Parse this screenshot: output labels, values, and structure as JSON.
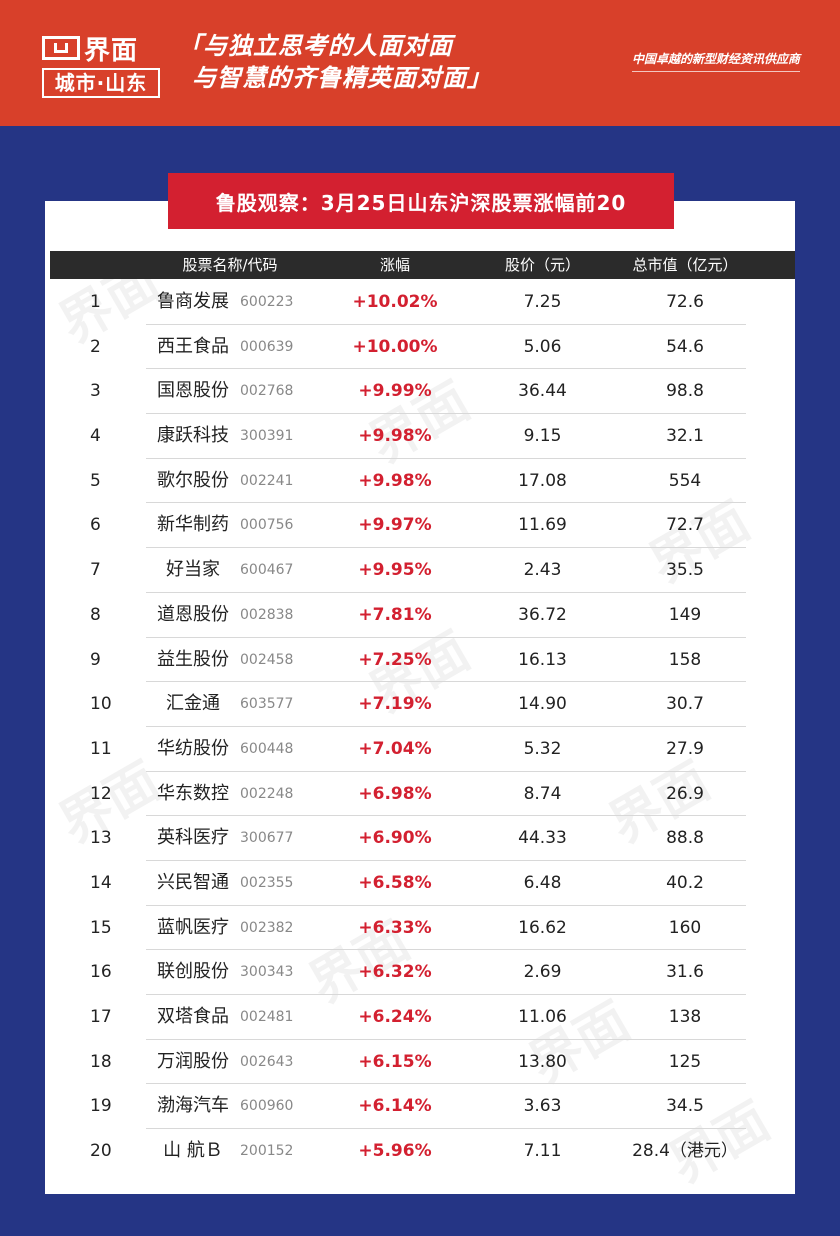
{
  "header": {
    "logo_name": "界面",
    "logo_city": "城市·山东",
    "slogan_line1": "「与独立思考的人面对面",
    "slogan_line2": "与智慧的齐鲁精英面对面」",
    "tagline": "中国卓越的新型财经资讯供应商"
  },
  "title": "鲁股观察：3月25日山东沪深股票涨幅前20",
  "columns": {
    "name_code": "股票名称/代码",
    "change": "涨幅",
    "price": "股价（元）",
    "market_cap": "总市值（亿元）"
  },
  "rows": [
    {
      "rank": "1",
      "name": "鲁商发展",
      "code": "600223",
      "change": "+10.02%",
      "price": "7.25",
      "cap": "72.6"
    },
    {
      "rank": "2",
      "name": "西王食品",
      "code": "000639",
      "change": "+10.00%",
      "price": "5.06",
      "cap": "54.6"
    },
    {
      "rank": "3",
      "name": "国恩股份",
      "code": "002768",
      "change": "+9.99%",
      "price": "36.44",
      "cap": "98.8"
    },
    {
      "rank": "4",
      "name": "康跃科技",
      "code": "300391",
      "change": "+9.98%",
      "price": "9.15",
      "cap": "32.1"
    },
    {
      "rank": "5",
      "name": "歌尔股份",
      "code": "002241",
      "change": "+9.98%",
      "price": "17.08",
      "cap": "554"
    },
    {
      "rank": "6",
      "name": "新华制药",
      "code": "000756",
      "change": "+9.97%",
      "price": "11.69",
      "cap": "72.7"
    },
    {
      "rank": "7",
      "name": "好当家",
      "code": "600467",
      "change": "+9.95%",
      "price": "2.43",
      "cap": "35.5"
    },
    {
      "rank": "8",
      "name": "道恩股份",
      "code": "002838",
      "change": "+7.81%",
      "price": "36.72",
      "cap": "149"
    },
    {
      "rank": "9",
      "name": "益生股份",
      "code": "002458",
      "change": "+7.25%",
      "price": "16.13",
      "cap": "158"
    },
    {
      "rank": "10",
      "name": "汇金通",
      "code": "603577",
      "change": "+7.19%",
      "price": "14.90",
      "cap": "30.7"
    },
    {
      "rank": "11",
      "name": "华纺股份",
      "code": "600448",
      "change": "+7.04%",
      "price": "5.32",
      "cap": "27.9"
    },
    {
      "rank": "12",
      "name": "华东数控",
      "code": "002248",
      "change": "+6.98%",
      "price": "8.74",
      "cap": "26.9"
    },
    {
      "rank": "13",
      "name": "英科医疗",
      "code": "300677",
      "change": "+6.90%",
      "price": "44.33",
      "cap": "88.8"
    },
    {
      "rank": "14",
      "name": "兴民智通",
      "code": "002355",
      "change": "+6.58%",
      "price": "6.48",
      "cap": "40.2"
    },
    {
      "rank": "15",
      "name": "蓝帆医疗",
      "code": "002382",
      "change": "+6.33%",
      "price": "16.62",
      "cap": "160"
    },
    {
      "rank": "16",
      "name": "联创股份",
      "code": "300343",
      "change": "+6.32%",
      "price": "2.69",
      "cap": "31.6"
    },
    {
      "rank": "17",
      "name": "双塔食品",
      "code": "002481",
      "change": "+6.24%",
      "price": "11.06",
      "cap": "138"
    },
    {
      "rank": "18",
      "name": "万润股份",
      "code": "002643",
      "change": "+6.15%",
      "price": "13.80",
      "cap": "125"
    },
    {
      "rank": "19",
      "name": "渤海汽车",
      "code": "600960",
      "change": "+6.14%",
      "price": "3.63",
      "cap": "34.5"
    },
    {
      "rank": "20",
      "name": "山 航Ｂ",
      "code": "200152",
      "change": "+5.96%",
      "price": "7.11",
      "cap": "28.4（港元）"
    }
  ],
  "colors": {
    "header_bg": "#d8402a",
    "page_bg": "#253585",
    "banner_bg": "#d32030",
    "change_text": "#d32030",
    "table_head_bg": "#2b2b2b"
  }
}
